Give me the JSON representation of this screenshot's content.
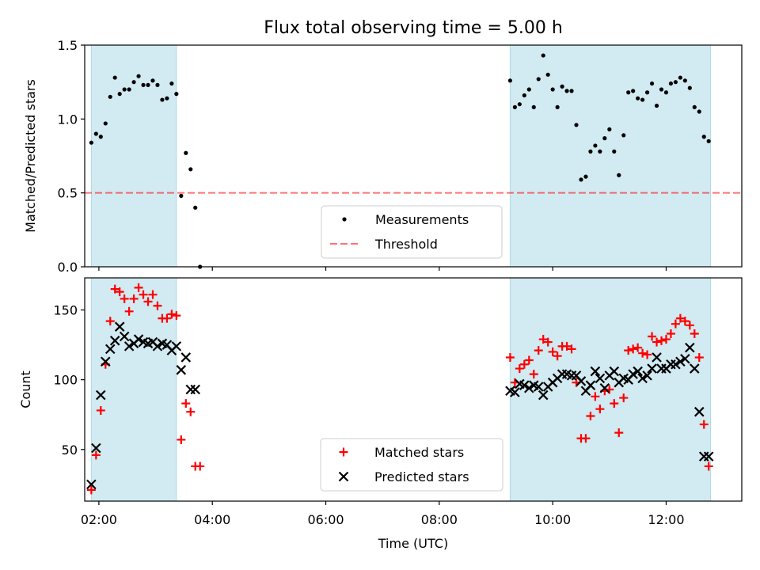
{
  "title": "Flux total observing time = 5.00 h",
  "colors": {
    "shade": "#add8e6",
    "measurement": "#000000",
    "threshold": "#ff0000",
    "matched": "#ff0000",
    "predicted": "#000000"
  },
  "chart_data": [
    {
      "type": "scatter",
      "ylabel": "Matched/Predicted stars",
      "ylim": [
        0,
        1.5
      ],
      "xlim": [
        "01:45",
        "13:20"
      ],
      "yticks": [
        0,
        0.5,
        1.0,
        1.5
      ],
      "ytick_labels": [
        "0.0",
        "0.5",
        "1.0",
        "1.5"
      ],
      "threshold": 0.5,
      "shaded_intervals": [
        [
          "01:52",
          "03:22"
        ],
        [
          "09:15",
          "12:47"
        ]
      ],
      "legend": {
        "placement": "lower-center",
        "entries": [
          "Measurements",
          "Threshold"
        ]
      },
      "series": [
        {
          "name": "Measurements",
          "x": [
            "01:52",
            "01:57",
            "02:02",
            "02:07",
            "02:12",
            "02:17",
            "02:22",
            "02:27",
            "02:32",
            "02:37",
            "02:42",
            "02:47",
            "02:52",
            "02:57",
            "03:02",
            "03:07",
            "03:12",
            "03:17",
            "03:22",
            "03:27",
            "03:32",
            "03:37",
            "03:42",
            "03:47",
            "09:15",
            "09:20",
            "09:25",
            "09:30",
            "09:35",
            "09:40",
            "09:45",
            "09:50",
            "09:55",
            "10:00",
            "10:05",
            "10:10",
            "10:15",
            "10:20",
            "10:25",
            "10:30",
            "10:35",
            "10:40",
            "10:45",
            "10:50",
            "10:55",
            "11:00",
            "11:05",
            "11:10",
            "11:15",
            "11:20",
            "11:25",
            "11:30",
            "11:35",
            "11:40",
            "11:45",
            "11:50",
            "11:55",
            "12:00",
            "12:05",
            "12:10",
            "12:15",
            "12:20",
            "12:25",
            "12:30",
            "12:35",
            "12:40",
            "12:45"
          ],
          "y": [
            0.84,
            0.9,
            0.88,
            0.97,
            1.15,
            1.28,
            1.17,
            1.2,
            1.2,
            1.25,
            1.29,
            1.23,
            1.23,
            1.26,
            1.23,
            1.13,
            1.14,
            1.24,
            1.17,
            0.48,
            0.77,
            0.66,
            0.4,
            0.0,
            1.26,
            1.08,
            1.1,
            1.16,
            1.2,
            1.08,
            1.27,
            1.43,
            1.3,
            1.2,
            1.08,
            1.22,
            1.19,
            1.19,
            0.96,
            0.59,
            0.61,
            0.78,
            0.82,
            0.78,
            0.87,
            0.93,
            0.78,
            0.62,
            0.89,
            1.18,
            1.19,
            1.14,
            1.13,
            1.18,
            1.24,
            1.09,
            1.2,
            1.18,
            1.24,
            1.25,
            1.28,
            1.26,
            1.21,
            1.08,
            1.05,
            0.88,
            0.85
          ]
        }
      ]
    },
    {
      "type": "scatter",
      "xlabel": "Time (UTC)",
      "ylabel": "Count",
      "ylim": [
        13,
        173
      ],
      "xlim": [
        "01:45",
        "13:20"
      ],
      "yticks": [
        50,
        100,
        150
      ],
      "xticks": [
        "02:00",
        "04:00",
        "06:00",
        "08:00",
        "10:00",
        "12:00"
      ],
      "shaded_intervals": [
        [
          "01:52",
          "03:22"
        ],
        [
          "09:15",
          "12:47"
        ]
      ],
      "legend": {
        "placement": "lower-center",
        "entries": [
          "Matched stars",
          "Predicted stars"
        ]
      },
      "series": [
        {
          "name": "Matched stars",
          "marker": "+",
          "x": [
            "01:52",
            "01:57",
            "02:02",
            "02:07",
            "02:12",
            "02:17",
            "02:22",
            "02:27",
            "02:32",
            "02:37",
            "02:42",
            "02:47",
            "02:52",
            "02:57",
            "03:02",
            "03:07",
            "03:12",
            "03:17",
            "03:22",
            "03:27",
            "03:32",
            "03:37",
            "03:42",
            "03:47",
            "09:15",
            "09:20",
            "09:25",
            "09:30",
            "09:35",
            "09:40",
            "09:45",
            "09:50",
            "09:55",
            "10:00",
            "10:05",
            "10:10",
            "10:15",
            "10:20",
            "10:25",
            "10:30",
            "10:35",
            "10:40",
            "10:45",
            "10:50",
            "10:55",
            "11:00",
            "11:05",
            "11:10",
            "11:15",
            "11:20",
            "11:25",
            "11:30",
            "11:35",
            "11:40",
            "11:45",
            "11:50",
            "11:55",
            "12:00",
            "12:05",
            "12:10",
            "12:15",
            "12:20",
            "12:25",
            "12:30",
            "12:35",
            "12:40",
            "12:45"
          ],
          "y": [
            21,
            46,
            78,
            111,
            142,
            165,
            163,
            158,
            149,
            158,
            166,
            161,
            156,
            161,
            153,
            144,
            144,
            147,
            146,
            57,
            83,
            77,
            38,
            38,
            116,
            98,
            108,
            111,
            114,
            104,
            121,
            129,
            127,
            120,
            117,
            124,
            124,
            122,
            98,
            58,
            58,
            74,
            88,
            79,
            92,
            93,
            83,
            62,
            87,
            121,
            122,
            123,
            119,
            118,
            131,
            127,
            128,
            129,
            133,
            140,
            144,
            142,
            139,
            133,
            116,
            68,
            38
          ]
        },
        {
          "name": "Predicted stars",
          "marker": "x",
          "x": [
            "01:52",
            "01:57",
            "02:02",
            "02:07",
            "02:12",
            "02:17",
            "02:22",
            "02:27",
            "02:32",
            "02:37",
            "02:42",
            "02:47",
            "02:52",
            "02:57",
            "03:02",
            "03:07",
            "03:12",
            "03:17",
            "03:22",
            "03:27",
            "03:32",
            "03:37",
            "03:42",
            "09:15",
            "09:20",
            "09:25",
            "09:30",
            "09:35",
            "09:40",
            "09:45",
            "09:50",
            "09:55",
            "10:00",
            "10:05",
            "10:10",
            "10:15",
            "10:20",
            "10:25",
            "10:30",
            "10:35",
            "10:40",
            "10:45",
            "10:50",
            "10:55",
            "11:00",
            "11:05",
            "11:10",
            "11:15",
            "11:20",
            "11:25",
            "11:30",
            "11:35",
            "11:40",
            "11:45",
            "11:50",
            "11:55",
            "12:00",
            "12:05",
            "12:10",
            "12:15",
            "12:20",
            "12:25",
            "12:30",
            "12:35",
            "12:40",
            "12:45"
          ],
          "y": [
            25,
            51,
            89,
            113,
            122,
            128,
            138,
            131,
            124,
            126,
            129,
            127,
            126,
            127,
            124,
            126,
            125,
            121,
            124,
            107,
            116,
            93,
            93,
            92,
            91,
            97,
            96,
            94,
            96,
            95,
            89,
            95,
            98,
            101,
            104,
            104,
            103,
            103,
            99,
            92,
            96,
            106,
            101,
            94,
            103,
            106,
            98,
            101,
            100,
            104,
            106,
            101,
            103,
            108,
            116,
            108,
            108,
            111,
            111,
            113,
            115,
            123,
            108,
            77,
            45,
            45
          ]
        }
      ]
    }
  ]
}
